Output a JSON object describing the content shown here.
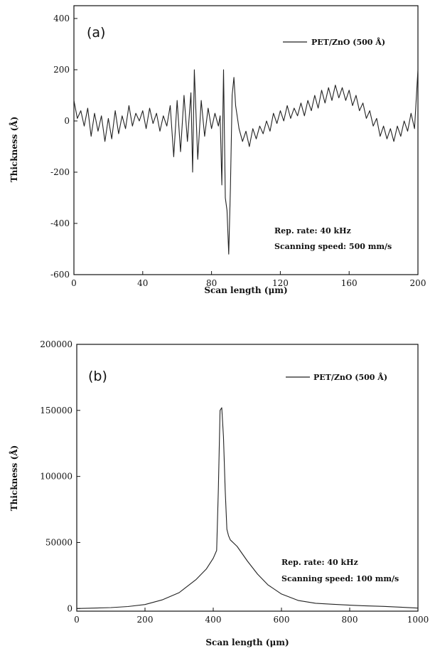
{
  "chart_data": [
    {
      "type": "line",
      "panel_label": "(a)",
      "xlabel": "Scan length (μm)",
      "ylabel": "Thickness (Å)",
      "xlim": [
        0,
        200
      ],
      "ylim": [
        -600,
        450
      ],
      "xticks": [
        0,
        40,
        80,
        120,
        160,
        200
      ],
      "yticks": [
        -600,
        -400,
        -200,
        0,
        200,
        400
      ],
      "legend_position": "top-right",
      "annotations": [
        "Rep. rate: 40 kHz",
        "Scanning speed: 500 mm/s"
      ],
      "series": [
        {
          "name": "PET/ZnO (500 Å)",
          "points": [
            [
              0,
              80
            ],
            [
              2,
              10
            ],
            [
              4,
              40
            ],
            [
              6,
              -20
            ],
            [
              8,
              50
            ],
            [
              10,
              -60
            ],
            [
              12,
              30
            ],
            [
              14,
              -40
            ],
            [
              16,
              20
            ],
            [
              18,
              -80
            ],
            [
              20,
              10
            ],
            [
              22,
              -70
            ],
            [
              24,
              40
            ],
            [
              26,
              -50
            ],
            [
              28,
              20
            ],
            [
              30,
              -30
            ],
            [
              32,
              60
            ],
            [
              34,
              -20
            ],
            [
              36,
              30
            ],
            [
              38,
              0
            ],
            [
              40,
              40
            ],
            [
              42,
              -30
            ],
            [
              44,
              50
            ],
            [
              46,
              -10
            ],
            [
              48,
              30
            ],
            [
              50,
              -40
            ],
            [
              52,
              20
            ],
            [
              54,
              -20
            ],
            [
              56,
              60
            ],
            [
              58,
              -140
            ],
            [
              60,
              80
            ],
            [
              62,
              -120
            ],
            [
              64,
              100
            ],
            [
              66,
              -80
            ],
            [
              68,
              110
            ],
            [
              69,
              -200
            ],
            [
              70,
              200
            ],
            [
              72,
              -150
            ],
            [
              74,
              80
            ],
            [
              76,
              -60
            ],
            [
              78,
              50
            ],
            [
              80,
              -30
            ],
            [
              82,
              30
            ],
            [
              84,
              -20
            ],
            [
              85,
              20
            ],
            [
              86,
              -250
            ],
            [
              87,
              200
            ],
            [
              88,
              -300
            ],
            [
              89,
              -350
            ],
            [
              90,
              -520
            ],
            [
              91,
              -260
            ],
            [
              92,
              100
            ],
            [
              93,
              170
            ],
            [
              94,
              60
            ],
            [
              96,
              -30
            ],
            [
              98,
              -80
            ],
            [
              100,
              -40
            ],
            [
              102,
              -100
            ],
            [
              104,
              -30
            ],
            [
              106,
              -70
            ],
            [
              108,
              -20
            ],
            [
              110,
              -50
            ],
            [
              112,
              0
            ],
            [
              114,
              -40
            ],
            [
              116,
              30
            ],
            [
              118,
              -10
            ],
            [
              120,
              40
            ],
            [
              122,
              0
            ],
            [
              124,
              60
            ],
            [
              126,
              10
            ],
            [
              128,
              50
            ],
            [
              130,
              20
            ],
            [
              132,
              70
            ],
            [
              134,
              20
            ],
            [
              136,
              80
            ],
            [
              138,
              40
            ],
            [
              140,
              100
            ],
            [
              142,
              50
            ],
            [
              144,
              120
            ],
            [
              146,
              70
            ],
            [
              148,
              130
            ],
            [
              150,
              80
            ],
            [
              152,
              140
            ],
            [
              154,
              90
            ],
            [
              156,
              130
            ],
            [
              158,
              80
            ],
            [
              160,
              120
            ],
            [
              162,
              60
            ],
            [
              164,
              100
            ],
            [
              166,
              40
            ],
            [
              168,
              70
            ],
            [
              170,
              10
            ],
            [
              172,
              40
            ],
            [
              174,
              -20
            ],
            [
              176,
              10
            ],
            [
              178,
              -60
            ],
            [
              180,
              -20
            ],
            [
              182,
              -70
            ],
            [
              184,
              -30
            ],
            [
              186,
              -80
            ],
            [
              188,
              -20
            ],
            [
              190,
              -60
            ],
            [
              192,
              0
            ],
            [
              194,
              -40
            ],
            [
              196,
              30
            ],
            [
              198,
              -30
            ],
            [
              200,
              200
            ]
          ]
        }
      ]
    },
    {
      "type": "line",
      "panel_label": "(b)",
      "xlabel": "Scan length (μm)",
      "ylabel": "Thickness (Å)",
      "xlim": [
        0,
        1000
      ],
      "ylim": [
        -2000,
        200000
      ],
      "xticks": [
        0,
        200,
        400,
        600,
        800,
        1000
      ],
      "yticks": [
        0,
        50000,
        100000,
        150000,
        200000
      ],
      "legend_position": "top-right",
      "annotations": [
        "Rep. rate: 40 kHz",
        "Scanning speed: 100 mm/s"
      ],
      "series": [
        {
          "name": "PET/ZnO (500 Å)",
          "points": [
            [
              0,
              0
            ],
            [
              50,
              300
            ],
            [
              100,
              700
            ],
            [
              150,
              1500
            ],
            [
              200,
              3000
            ],
            [
              250,
              6500
            ],
            [
              300,
              12000
            ],
            [
              350,
              22000
            ],
            [
              380,
              30000
            ],
            [
              400,
              38000
            ],
            [
              410,
              44000
            ],
            [
              415,
              90000
            ],
            [
              420,
              150000
            ],
            [
              425,
              152000
            ],
            [
              430,
              130000
            ],
            [
              435,
              90000
            ],
            [
              440,
              60000
            ],
            [
              445,
              55000
            ],
            [
              450,
              52000
            ],
            [
              470,
              47000
            ],
            [
              500,
              36000
            ],
            [
              530,
              26000
            ],
            [
              560,
              18000
            ],
            [
              600,
              11000
            ],
            [
              650,
              6000
            ],
            [
              700,
              4000
            ],
            [
              750,
              3200
            ],
            [
              800,
              2500
            ],
            [
              850,
              2000
            ],
            [
              900,
              1600
            ],
            [
              950,
              1000
            ],
            [
              1000,
              300
            ]
          ]
        }
      ]
    }
  ]
}
